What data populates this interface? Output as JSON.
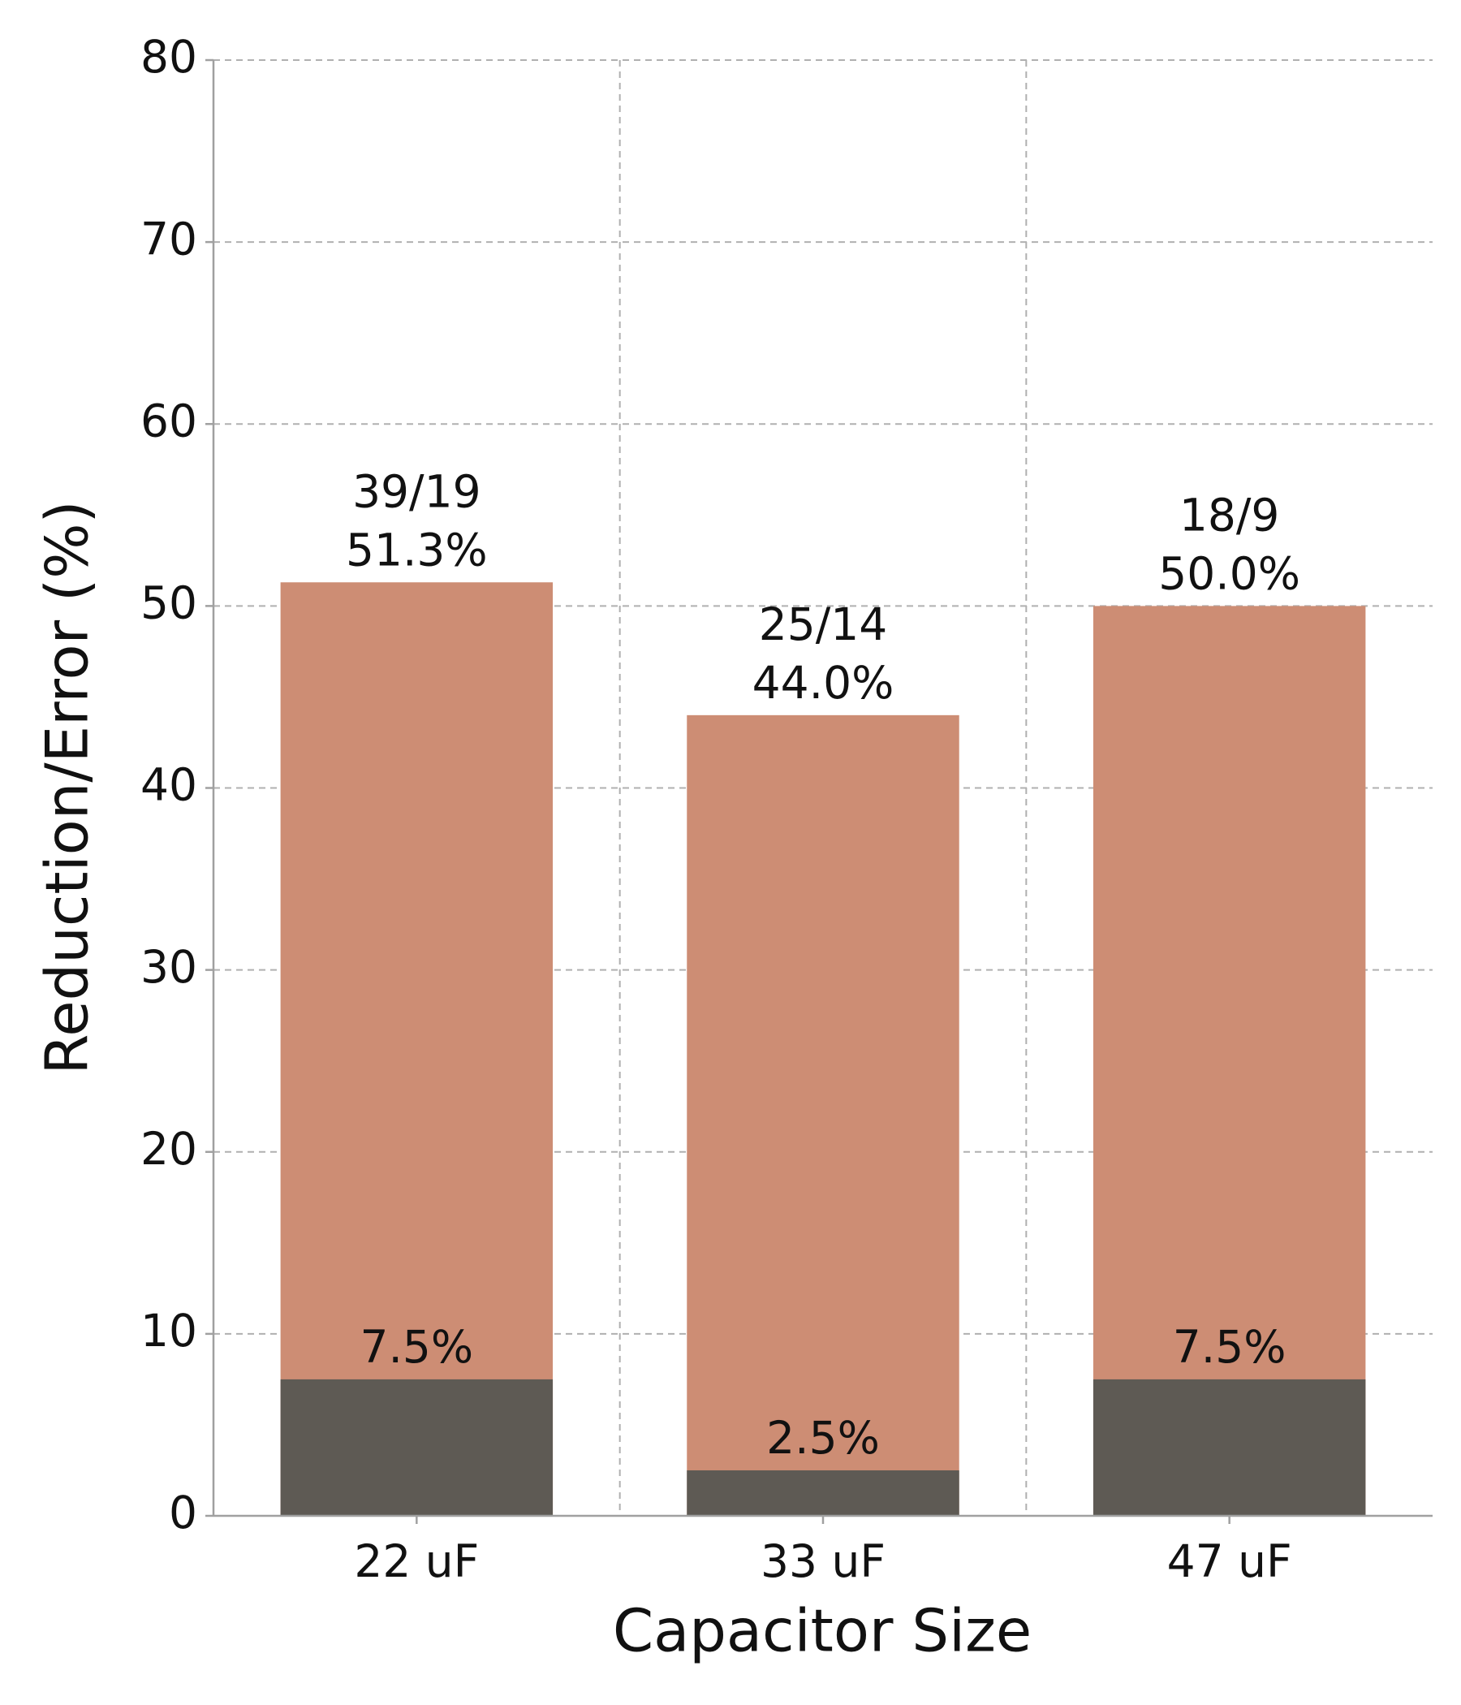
{
  "chart_data": {
    "type": "bar",
    "xlabel": "Capacitor Size",
    "ylabel": "Reduction/Error (%)",
    "categories": [
      "22 uF",
      "33 uF",
      "47 uF"
    ],
    "series": [
      {
        "color": "#cd8d74",
        "values": [
          51.3,
          44.0,
          50.0
        ],
        "value_labels": [
          "51.3%",
          "44.0%",
          "50.0%"
        ]
      },
      {
        "color": "#5e5a54",
        "values": [
          7.5,
          2.5,
          7.5
        ],
        "value_labels": [
          "7.5%",
          "2.5%",
          "7.5%"
        ]
      }
    ],
    "annotations": [
      "39/19",
      "25/14",
      "18/9"
    ],
    "ylim": [
      0,
      80
    ],
    "yticks": [
      0,
      10,
      20,
      30,
      40,
      50,
      60,
      70,
      80
    ],
    "grid": true
  }
}
